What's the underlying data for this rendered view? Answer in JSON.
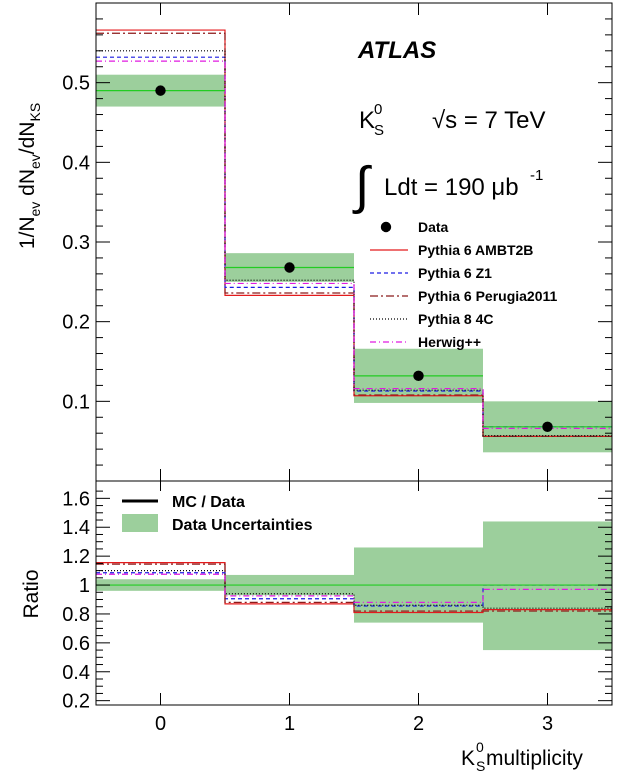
{
  "chart_data": [
    {
      "type": "step",
      "panel": "main",
      "experiment": "ATLAS",
      "particle": "K",
      "particle_sup": "0",
      "particle_sub": "S",
      "energy_label": "√s = 7 TeV",
      "lumi_label": "Ldt = 190 μb",
      "lumi_sup": "-1",
      "integral_symbol": "∫",
      "ylabel_main": "1/N",
      "ylabel_parts": [
        "1/N",
        "ev",
        " dN",
        "ev",
        "/dN",
        "KS"
      ],
      "ylim": [
        0,
        0.6
      ],
      "yticks": [
        0.1,
        0.2,
        0.3,
        0.4,
        0.5
      ],
      "bins": [
        0,
        1,
        2,
        3
      ],
      "data": {
        "name": "Data",
        "values": [
          0.49,
          0.268,
          0.132,
          0.068
        ],
        "band_low": [
          0.47,
          0.25,
          0.098,
          0.036
        ],
        "band_high": [
          0.51,
          0.286,
          0.166,
          0.1
        ]
      },
      "series": [
        {
          "name": "Pythia 6 AMBT2B",
          "color": "#e41a1c",
          "dash": "none",
          "values": [
            0.566,
            0.233,
            0.107,
            0.056
          ]
        },
        {
          "name": "Pythia 6 Z1",
          "color": "#1c1ce4",
          "dash": "4,3",
          "values": [
            0.532,
            0.243,
            0.113,
            0.068
          ]
        },
        {
          "name": "Pythia 6 Perugia2011",
          "color": "#8b1a1a",
          "dash": "8,3,2,3",
          "values": [
            0.562,
            0.236,
            0.108,
            0.056
          ]
        },
        {
          "name": "Pythia 8 4C",
          "color": "#000000",
          "dash": "1,2",
          "values": [
            0.54,
            0.252,
            0.114,
            0.057
          ]
        },
        {
          "name": "Herwig++",
          "color": "#e01ae0",
          "dash": "6,3,1,3",
          "values": [
            0.527,
            0.248,
            0.116,
            0.066
          ]
        }
      ]
    },
    {
      "type": "step",
      "panel": "ratio",
      "ylabel": "Ratio",
      "xlabel_main": "K",
      "xlabel_sup": "0",
      "xlabel_sub": "S",
      "xlabel_rest": " multiplicity",
      "ylim": [
        0.17,
        1.72
      ],
      "yticks": [
        "0.2",
        "0.4",
        "0.6",
        "0.8",
        "1",
        "1.2",
        "1.4",
        "1.6"
      ],
      "xticks": [
        "0",
        "1",
        "2",
        "3"
      ],
      "legend": [
        "MC / Data",
        "Data Uncertainties"
      ],
      "band_low": [
        0.96,
        0.93,
        0.74,
        0.55
      ],
      "band_high": [
        1.04,
        1.07,
        1.26,
        1.44
      ],
      "series": [
        {
          "name": "Pythia 6 AMBT2B",
          "values": [
            1.155,
            0.87,
            0.81,
            0.83
          ]
        },
        {
          "name": "Pythia 6 Z1",
          "values": [
            1.085,
            0.905,
            0.855,
            1.0
          ]
        },
        {
          "name": "Pythia 6 Perugia2011",
          "values": [
            1.145,
            0.88,
            0.82,
            0.82
          ]
        },
        {
          "name": "Pythia 8 4C",
          "values": [
            1.1,
            0.94,
            0.86,
            0.84
          ]
        },
        {
          "name": "Herwig++",
          "values": [
            1.075,
            0.925,
            0.88,
            0.97
          ]
        }
      ]
    }
  ]
}
